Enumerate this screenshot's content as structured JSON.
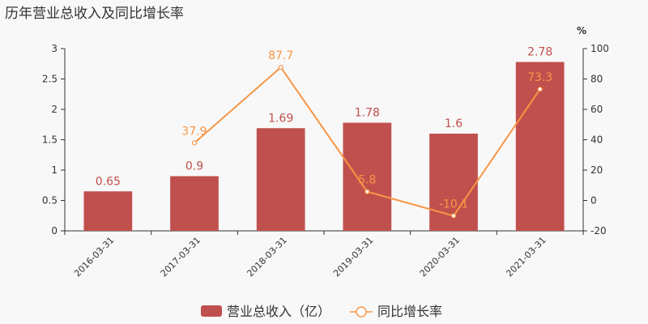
{
  "chart_data": {
    "type": "bar",
    "title": "历年营业总收入及同比增长率",
    "categories": [
      "2016-03-31",
      "2017-03-31",
      "2018-03-31",
      "2019-03-31",
      "2020-03-31",
      "2021-03-31"
    ],
    "series": [
      {
        "name": "营业总收入（亿）",
        "type": "bar",
        "axis": "left",
        "values": [
          0.65,
          0.9,
          1.69,
          1.78,
          1.6,
          2.78
        ],
        "labels": [
          "0.65",
          "0.9",
          "1.69",
          "1.78",
          "1.6",
          "2.78"
        ]
      },
      {
        "name": "同比增长率",
        "type": "line",
        "axis": "right",
        "values": [
          null,
          37.9,
          87.7,
          5.8,
          -10.1,
          73.3
        ],
        "labels": [
          "",
          "37.9",
          "87.7",
          "5.8",
          "-10.1",
          "73.3"
        ]
      }
    ],
    "ylim_left": [
      0,
      3
    ],
    "yticks_left": [
      "0",
      "0.5",
      "1",
      "1.5",
      "2",
      "2.5",
      "3"
    ],
    "ylim_right": [
      -20,
      100
    ],
    "yticks_right": [
      "-20",
      "0",
      "20",
      "40",
      "60",
      "80",
      "100"
    ],
    "ylabel_right": "%",
    "grid": false,
    "legend_position": "bottom",
    "colors": {
      "bar": "#c0504d",
      "line": "#f79646"
    }
  }
}
